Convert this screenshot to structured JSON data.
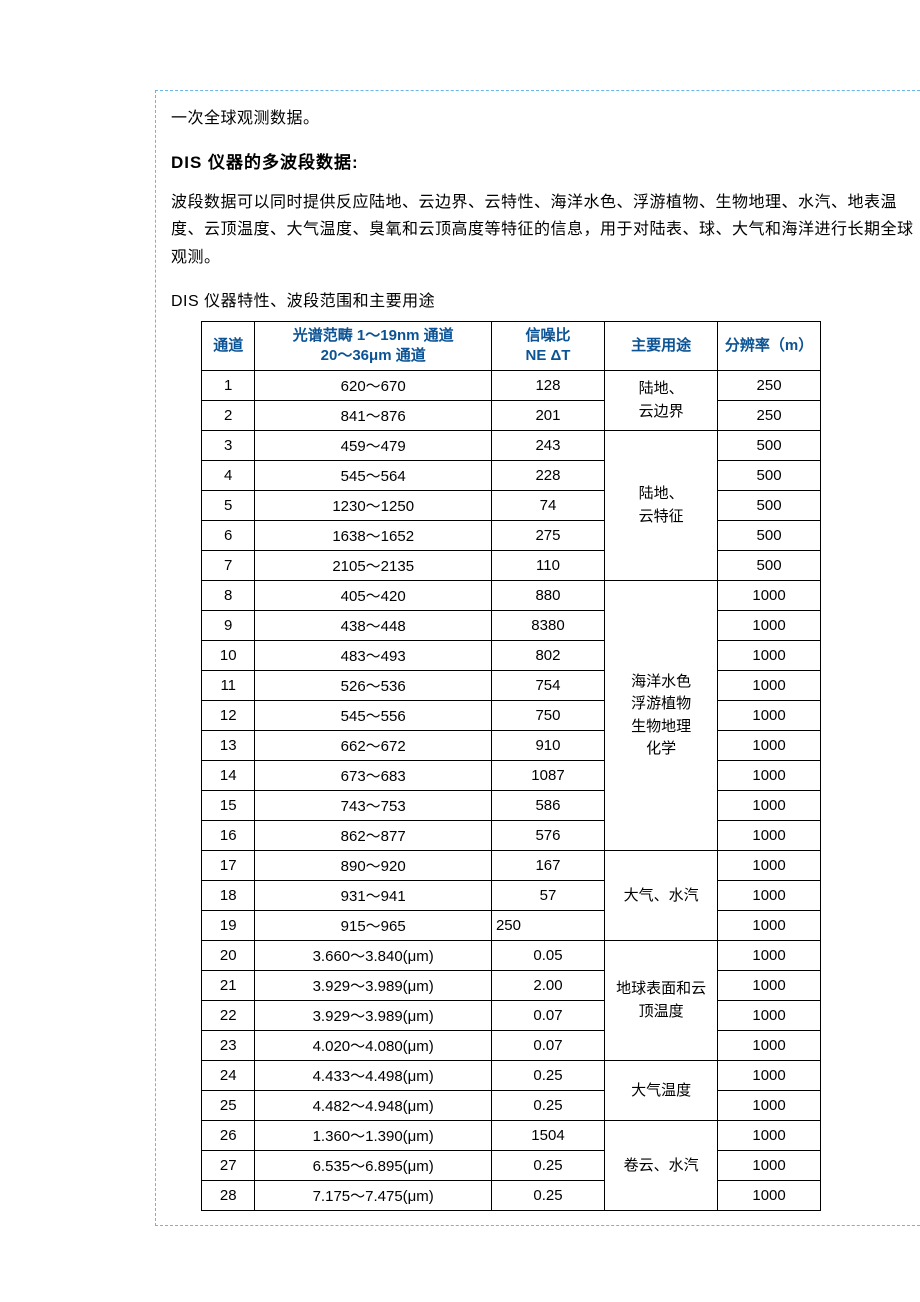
{
  "text": {
    "p1": "一次全球观测数据。",
    "h1": "DIS 仪器的多波段数据:",
    "p2": "波段数据可以同时提供反应陆地、云边界、云特性、海洋水色、浮游植物、生物地理、水汽、地表温度、云顶温度、大气温度、臭氧和云顶高度等特征的信息，用于对陆表、球、大气和海洋进行长期全球观测。",
    "caption": "DIS 仪器特性、波段范围和主要用途"
  },
  "table": {
    "headers": {
      "channel": "通道",
      "range_l1": "光谱范畴 1～19nm 通道",
      "range_l2": "20～36μm 通道",
      "snr_l1": "信噪比",
      "snr_l2": "NE   ΔT",
      "usage": "主要用途",
      "resolution": "分辨率（m）"
    },
    "column_widths": {
      "channel": 52,
      "range": 230,
      "snr": 110,
      "usage": 110,
      "resolution": 100
    },
    "header_color": "#0b5394",
    "border_color": "#000000",
    "usage_groups": [
      {
        "label": "陆地、\n云边界",
        "span": 2
      },
      {
        "label": "陆地、\n云特征",
        "span": 5
      },
      {
        "label": "海洋水色\n浮游植物\n生物地理\n化学",
        "span": 9
      },
      {
        "label": "大气、水汽",
        "span": 3
      },
      {
        "label": "地球表面和云\n顶温度",
        "span": 4
      },
      {
        "label": "大气温度",
        "span": 2
      },
      {
        "label": "卷云、水汽",
        "span": 3
      }
    ],
    "rows": [
      {
        "ch": 1,
        "range": "620～670",
        "snr": "128",
        "res": "250"
      },
      {
        "ch": 2,
        "range": "841～876",
        "snr": "201",
        "res": "250"
      },
      {
        "ch": 3,
        "range": "459～479",
        "snr": "243",
        "res": "500"
      },
      {
        "ch": 4,
        "range": "545～564",
        "snr": "228",
        "res": "500"
      },
      {
        "ch": 5,
        "range": "1230～1250",
        "snr": "74",
        "res": "500"
      },
      {
        "ch": 6,
        "range": "1638～1652",
        "snr": "275",
        "res": "500"
      },
      {
        "ch": 7,
        "range": "2105～2135",
        "snr": "110",
        "res": "500"
      },
      {
        "ch": 8,
        "range": "405～420",
        "snr": "880",
        "res": "1000"
      },
      {
        "ch": 9,
        "range": "438～448",
        "snr": "8380",
        "res": "1000"
      },
      {
        "ch": 10,
        "range": "483～493",
        "snr": "802",
        "res": "1000"
      },
      {
        "ch": 11,
        "range": "526～536",
        "snr": "754",
        "res": "1000"
      },
      {
        "ch": 12,
        "range": "545～556",
        "snr": "750",
        "res": "1000"
      },
      {
        "ch": 13,
        "range": "662～672",
        "snr": "910",
        "res": "1000"
      },
      {
        "ch": 14,
        "range": "673～683",
        "snr": "1087",
        "res": "1000"
      },
      {
        "ch": 15,
        "range": "743～753",
        "snr": "586",
        "res": "1000"
      },
      {
        "ch": 16,
        "range": "862～877",
        "snr": "576",
        "res": "1000"
      },
      {
        "ch": 17,
        "range": "890～920",
        "snr": "167",
        "res": "1000"
      },
      {
        "ch": 18,
        "range": "931～941",
        "snr": "57",
        "res": "1000"
      },
      {
        "ch": 19,
        "range": "915～965",
        "snr": "250",
        "res": "1000",
        "snr_left": true
      },
      {
        "ch": 20,
        "range": "3.660～3.840(μm)",
        "snr": "0.05",
        "res": "1000"
      },
      {
        "ch": 21,
        "range": "3.929～3.989(μm)",
        "snr": "2.00",
        "res": "1000"
      },
      {
        "ch": 22,
        "range": "3.929～3.989(μm)",
        "snr": "0.07",
        "res": "1000"
      },
      {
        "ch": 23,
        "range": "4.020～4.080(μm)",
        "snr": "0.07",
        "res": "1000"
      },
      {
        "ch": 24,
        "range": "4.433～4.498(μm)",
        "snr": "0.25",
        "res": "1000"
      },
      {
        "ch": 25,
        "range": "4.482～4.948(μm)",
        "snr": "0.25",
        "res": "1000"
      },
      {
        "ch": 26,
        "range": "1.360～1.390(μm)",
        "snr": "1504",
        "res": "1000"
      },
      {
        "ch": 27,
        "range": "6.535～6.895(μm)",
        "snr": "0.25",
        "res": "1000"
      },
      {
        "ch": 28,
        "range": "7.175～7.475(μm)",
        "snr": "0.25",
        "res": "1000"
      }
    ]
  }
}
